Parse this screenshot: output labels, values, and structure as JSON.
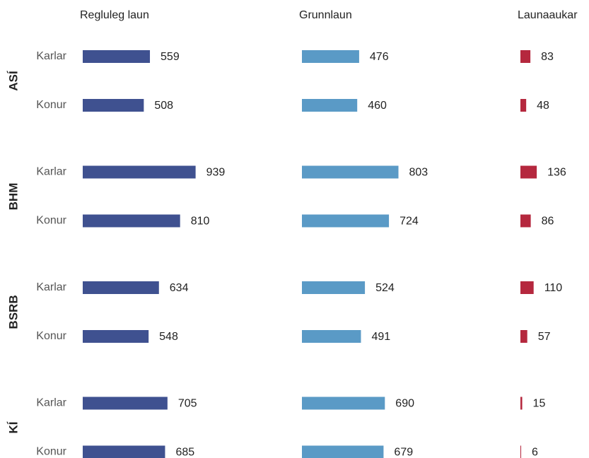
{
  "chart_data": {
    "type": "bar",
    "orientation": "horizontal",
    "groups": [
      {
        "name": "ASÍ",
        "categories": [
          "Karlar",
          "Konur"
        ]
      },
      {
        "name": "BHM",
        "categories": [
          "Karlar",
          "Konur"
        ]
      },
      {
        "name": "BSRB",
        "categories": [
          "Karlar",
          "Konur"
        ]
      },
      {
        "name": "KÍ",
        "categories": [
          "Karlar",
          "Konur"
        ]
      }
    ],
    "xlim": [
      0,
      1000
    ],
    "series": [
      {
        "name": "Regluleg laun",
        "color": "#3f5190",
        "values": [
          559,
          508,
          939,
          810,
          634,
          548,
          705,
          685
        ]
      },
      {
        "name": "Grunnlaun",
        "color": "#5a9ac6",
        "values": [
          476,
          460,
          803,
          724,
          524,
          491,
          690,
          679
        ]
      },
      {
        "name": "Launaaukar",
        "color": "#b5283e",
        "values": [
          83,
          48,
          136,
          86,
          110,
          57,
          15,
          6
        ]
      }
    ]
  }
}
